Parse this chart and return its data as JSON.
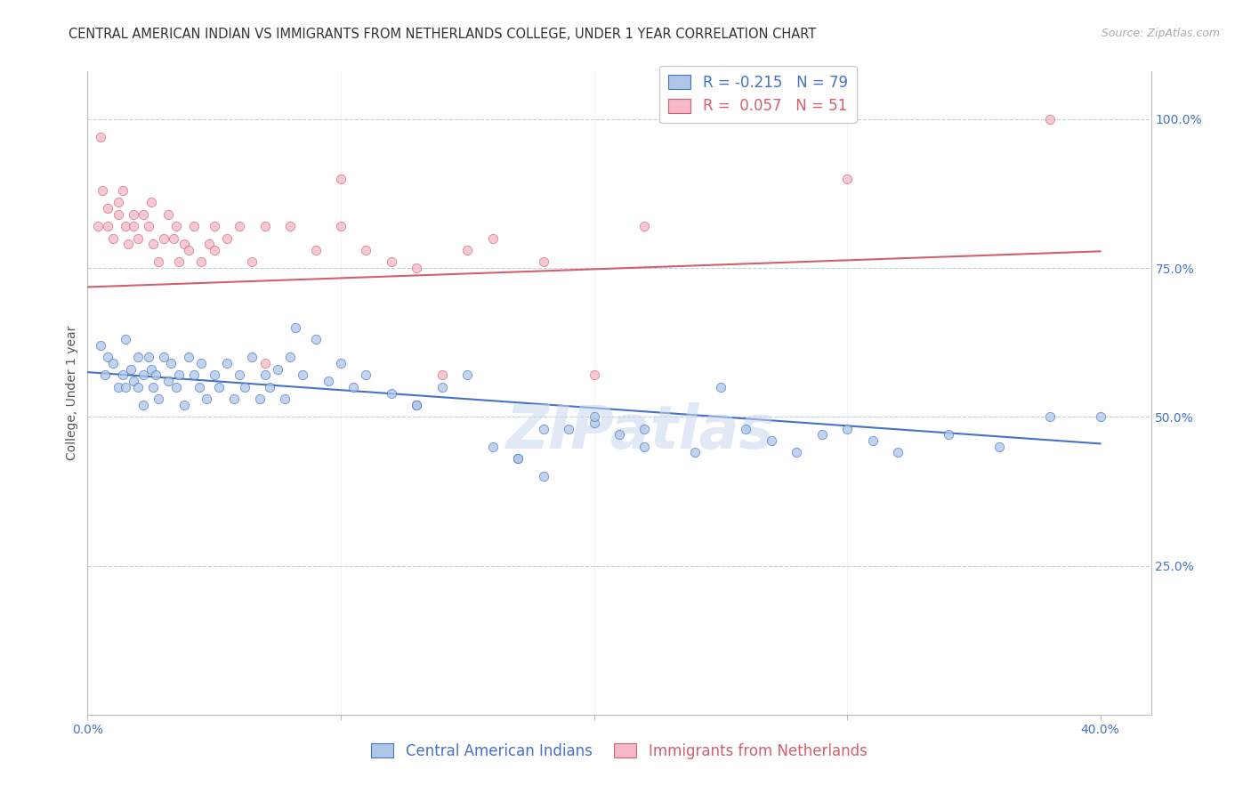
{
  "title": "CENTRAL AMERICAN INDIAN VS IMMIGRANTS FROM NETHERLANDS COLLEGE, UNDER 1 YEAR CORRELATION CHART",
  "source": "Source: ZipAtlas.com",
  "ylabel": "College, Under 1 year",
  "ytick_labels": [
    "100.0%",
    "75.0%",
    "50.0%",
    "25.0%"
  ],
  "ytick_values": [
    1.0,
    0.75,
    0.5,
    0.25
  ],
  "xlim": [
    0.0,
    0.42
  ],
  "ylim": [
    0.0,
    1.08
  ],
  "blue_R": -0.215,
  "blue_N": 79,
  "pink_R": 0.057,
  "pink_N": 51,
  "blue_color": "#aec6e8",
  "pink_color": "#f4b8c8",
  "blue_line_color": "#4472c4",
  "pink_line_color": "#d06070",
  "label_color": "#4472c4",
  "grid_color": "#c0d0e0",
  "background_color": "#ffffff",
  "blue_scatter_x": [
    0.005,
    0.007,
    0.008,
    0.01,
    0.012,
    0.014,
    0.015,
    0.015,
    0.017,
    0.018,
    0.02,
    0.02,
    0.022,
    0.022,
    0.024,
    0.025,
    0.026,
    0.027,
    0.028,
    0.03,
    0.032,
    0.033,
    0.035,
    0.036,
    0.038,
    0.04,
    0.042,
    0.044,
    0.045,
    0.047,
    0.05,
    0.052,
    0.055,
    0.058,
    0.06,
    0.062,
    0.065,
    0.068,
    0.07,
    0.072,
    0.075,
    0.078,
    0.08,
    0.082,
    0.085,
    0.09,
    0.095,
    0.1,
    0.105,
    0.11,
    0.12,
    0.13,
    0.14,
    0.15,
    0.16,
    0.17,
    0.18,
    0.2,
    0.21,
    0.22,
    0.24,
    0.26,
    0.28,
    0.3,
    0.32,
    0.34,
    0.36,
    0.38,
    0.4,
    0.13,
    0.17,
    0.18,
    0.19,
    0.2,
    0.22,
    0.25,
    0.27,
    0.29,
    0.31
  ],
  "blue_scatter_y": [
    0.62,
    0.57,
    0.6,
    0.59,
    0.55,
    0.57,
    0.55,
    0.63,
    0.58,
    0.56,
    0.6,
    0.55,
    0.57,
    0.52,
    0.6,
    0.58,
    0.55,
    0.57,
    0.53,
    0.6,
    0.56,
    0.59,
    0.55,
    0.57,
    0.52,
    0.6,
    0.57,
    0.55,
    0.59,
    0.53,
    0.57,
    0.55,
    0.59,
    0.53,
    0.57,
    0.55,
    0.6,
    0.53,
    0.57,
    0.55,
    0.58,
    0.53,
    0.6,
    0.65,
    0.57,
    0.63,
    0.56,
    0.59,
    0.55,
    0.57,
    0.54,
    0.52,
    0.55,
    0.57,
    0.45,
    0.43,
    0.48,
    0.49,
    0.47,
    0.45,
    0.44,
    0.48,
    0.44,
    0.48,
    0.44,
    0.47,
    0.45,
    0.5,
    0.5,
    0.52,
    0.43,
    0.4,
    0.48,
    0.5,
    0.48,
    0.55,
    0.46,
    0.47,
    0.46
  ],
  "blue_scatter_size": 55,
  "pink_scatter_x": [
    0.004,
    0.006,
    0.008,
    0.01,
    0.012,
    0.014,
    0.015,
    0.016,
    0.018,
    0.02,
    0.022,
    0.024,
    0.026,
    0.028,
    0.03,
    0.032,
    0.034,
    0.036,
    0.038,
    0.04,
    0.042,
    0.045,
    0.048,
    0.05,
    0.055,
    0.06,
    0.065,
    0.07,
    0.08,
    0.09,
    0.1,
    0.11,
    0.12,
    0.13,
    0.15,
    0.16,
    0.18,
    0.2,
    0.22,
    0.3,
    0.38,
    0.005,
    0.008,
    0.012,
    0.018,
    0.025,
    0.035,
    0.05,
    0.07,
    0.1,
    0.14
  ],
  "pink_scatter_y": [
    0.82,
    0.88,
    0.85,
    0.8,
    0.84,
    0.88,
    0.82,
    0.79,
    0.82,
    0.8,
    0.84,
    0.82,
    0.79,
    0.76,
    0.8,
    0.84,
    0.8,
    0.76,
    0.79,
    0.78,
    0.82,
    0.76,
    0.79,
    0.78,
    0.8,
    0.82,
    0.76,
    0.82,
    0.82,
    0.78,
    0.82,
    0.78,
    0.76,
    0.75,
    0.78,
    0.8,
    0.76,
    0.57,
    0.82,
    0.9,
    1.0,
    0.97,
    0.82,
    0.86,
    0.84,
    0.86,
    0.82,
    0.82,
    0.59,
    0.9,
    0.57
  ],
  "pink_scatter_size": 55,
  "blue_trend_x": [
    0.0,
    0.4
  ],
  "blue_trend_y": [
    0.575,
    0.455
  ],
  "pink_trend_x": [
    0.0,
    0.4
  ],
  "pink_trend_y": [
    0.718,
    0.778
  ],
  "legend_blue_R": "-0.215",
  "legend_blue_N": "79",
  "legend_pink_R": "0.057",
  "legend_pink_N": "51",
  "cat_label_blue": "Central American Indians",
  "cat_label_pink": "Immigrants from Netherlands",
  "title_fontsize": 10.5,
  "source_fontsize": 9,
  "axis_label_fontsize": 10,
  "tick_fontsize": 10,
  "legend_fontsize": 12
}
